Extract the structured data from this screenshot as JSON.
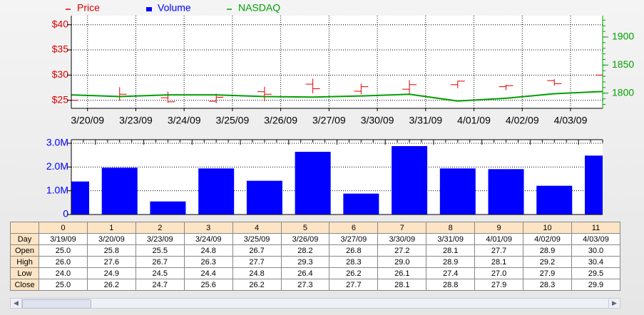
{
  "chart_data": [
    {
      "type": "ohlc",
      "name": "Price",
      "color": "#e00000",
      "x": [
        "3/19/09",
        "3/20/09",
        "3/23/09",
        "3/24/09",
        "3/25/09",
        "3/26/09",
        "3/27/09",
        "3/30/09",
        "3/31/09",
        "4/01/09",
        "4/02/09",
        "4/03/09"
      ],
      "series": [
        {
          "name": "Open",
          "values": [
            25.0,
            25.8,
            25.5,
            24.8,
            26.7,
            28.2,
            26.8,
            27.2,
            28.1,
            27.7,
            28.9,
            30.0
          ],
          "value_labels": [
            "25.0",
            "25.8",
            "25.5",
            "24.8",
            "26.7",
            "28.2",
            "26.8",
            "27.2",
            "28.1",
            "27.7",
            "28.9",
            "30.0"
          ]
        },
        {
          "name": "High",
          "values": [
            26.0,
            27.6,
            26.7,
            26.3,
            27.7,
            29.3,
            28.3,
            29.0,
            28.9,
            28.1,
            29.2,
            30.4
          ],
          "value_labels": [
            "26.0",
            "27.6",
            "26.7",
            "26.3",
            "27.7",
            "29.3",
            "28.3",
            "29.0",
            "28.9",
            "28.1",
            "29.2",
            "30.4"
          ]
        },
        {
          "name": "Low",
          "values": [
            24.0,
            24.9,
            24.5,
            24.4,
            24.8,
            26.4,
            26.2,
            26.1,
            27.4,
            27.0,
            27.9,
            29.5
          ],
          "value_labels": [
            "24.0",
            "24.9",
            "24.5",
            "24.4",
            "24.8",
            "26.4",
            "26.2",
            "26.1",
            "27.4",
            "27.0",
            "27.9",
            "29.5"
          ]
        },
        {
          "name": "Close",
          "values": [
            25.0,
            26.2,
            24.7,
            25.6,
            26.2,
            27.3,
            27.7,
            28.1,
            28.8,
            27.9,
            28.3,
            29.9
          ],
          "value_labels": [
            "25.0",
            "26.2",
            "24.7",
            "25.6",
            "26.2",
            "27.3",
            "27.7",
            "28.1",
            "28.8",
            "27.9",
            "28.3",
            "29.9"
          ]
        }
      ],
      "overlay": {
        "name": "NASDAQ",
        "color": "#00a000",
        "axis": "y2",
        "values": [
          1797,
          1794,
          1797,
          1797,
          1794,
          1793,
          1795,
          1798,
          1786,
          1791,
          1799,
          1803
        ]
      },
      "ylim": [
        23.4,
        41.8
      ],
      "yticks": [
        {
          "value": 25,
          "label": "$25"
        },
        {
          "value": 30,
          "label": "$30"
        },
        {
          "value": 35,
          "label": "$35"
        },
        {
          "value": 40,
          "label": "$40"
        }
      ],
      "y2lim": [
        1773,
        1938
      ],
      "y2ticks": [
        1800,
        1850,
        1900
      ],
      "grid": true
    },
    {
      "type": "bar",
      "name": "Volume",
      "color": "#0000ff",
      "values": [
        1390000,
        1970000,
        550000,
        1940000,
        1420000,
        2640000,
        880000,
        2880000,
        1940000,
        1910000,
        1210000,
        2480000
      ],
      "ylim": [
        0,
        3150000
      ],
      "yticks": [
        0,
        {
          "value": 1000000,
          "label": "1.0M"
        },
        {
          "value": 2000000,
          "label": "2.0M"
        },
        {
          "value": 3000000,
          "label": "3.0M"
        }
      ],
      "grid": true
    }
  ],
  "table": {
    "columns": [
      0,
      1,
      2,
      3,
      4,
      5,
      6,
      7,
      8,
      9,
      10,
      11
    ],
    "day_label": "Day"
  }
}
